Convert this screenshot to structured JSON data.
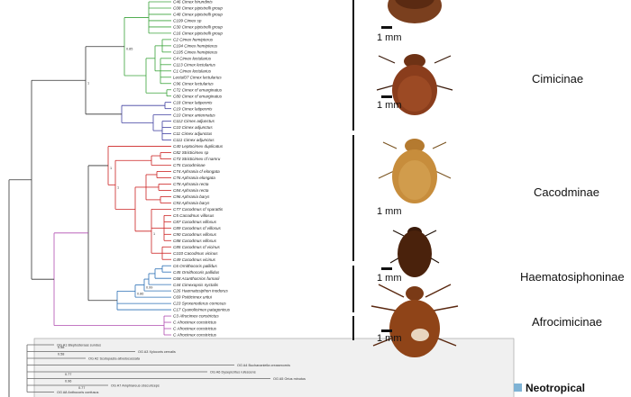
{
  "subfamilies": [
    {
      "name": "Cimicinae"
    },
    {
      "name": "Cacodminae"
    },
    {
      "name": "Haematosiphoninae"
    },
    {
      "name": "Afrocimicinae"
    }
  ],
  "scale_label": "1 mm",
  "legend": {
    "label": "Neotropical",
    "color": "#7fb3d5"
  },
  "clade_colors": {
    "cimex_lectularius_group": "#3aa33a",
    "cimex_pilosellus_group": "#4040a0",
    "cacodminae": "#cc2222",
    "haematosiphoninae": "#2a6fb5",
    "afrocimicinae": "#b04db0",
    "root": "#333333"
  },
  "leaves": [
    "C46 Cimex hirundinis",
    "C08 Cimex pipistrelli group",
    "C48 Cimex pipistrelli group",
    "C109 Cimex sp",
    "C30 Cimex pipistrelli group",
    "C16 Cimex pipistrelli group",
    "C2 Cimex hemipterus",
    "C104 Cimex hemipterus",
    "C105 Cimex hemipterus",
    "C4 Cimex lectularius",
    "C113 Cimex lectularius",
    "C1 Cimex lectularius",
    "Lectul07 Cimex lectularius",
    "C96 Cimex lectularius",
    "C72 Cimex cf emarginatus",
    "C80 Cimex cf emarginatus",
    "C18 Cimex latipennis",
    "C19 Cimex latipennis",
    "C10 Cimex antennatus",
    "C112 Cimex adjunctus",
    "C10 Cimex adjunctus",
    "C11 Cimex adjunctus",
    "C111 Cimex adjunctus",
    "C40 Leptocimex duplicatus",
    "C82 Stricticimex sp",
    "C73 Stricticimex cf namru",
    "C75 Cacodminae",
    "C74 Aphrania cf elongata",
    "C76 Aphrania elongata",
    "C78 Aphrania recta",
    "C84 Aphrania recta",
    "C96 Aphrania barys",
    "C93 Aphrania barys",
    "C77 Cacodmus cf sparattis",
    "C5 Cacodmus villosus",
    "C87 Cacodmus villosus",
    "C89 Cacodmus cf villosus",
    "C90 Cacodmus villosus",
    "C88 Cacodmus villosus",
    "C85 Cacodmus cf vicinus",
    "C103 Cacodmus vicinus",
    "C49 Cacodmus vicinus",
    "C6 Ornithocoris pallidus",
    "C45 Ornithocoris pallidus",
    "C68 Acanthocrios furnarii",
    "C44 Cimexopsis nyctalis",
    "C26 Haematosiphon inodorus",
    "C69 Psitticimex uritui",
    "C23 Synxenoderus comosus",
    "C17 Cyanolicimex patagonicus",
    "C3 Afrocimex constrictus",
    "C Afrocimex constrictus",
    "C Afrocimex constrictus",
    "C Afrocimex constrictus"
  ],
  "outgroups": [
    "OG A1 Bleptosteraas sundus",
    "OG A3 Xylocoris cervalis",
    "OG A2 Scotopasta albodocussata",
    "OG A4 Buchananiella creasexornis",
    "OG A6 Dysepicritus rufescens",
    "OG A5 Orius minutus",
    "OG A7 Amphiareus obscuriceps",
    "OG A8 Anthocoris confusus"
  ],
  "bootstrap_values": [
    "1",
    "0.85",
    "1",
    "1",
    "1",
    "0.99",
    "0.86",
    "0.58",
    "0.58",
    "0.77",
    "0.96",
    "0.77"
  ]
}
